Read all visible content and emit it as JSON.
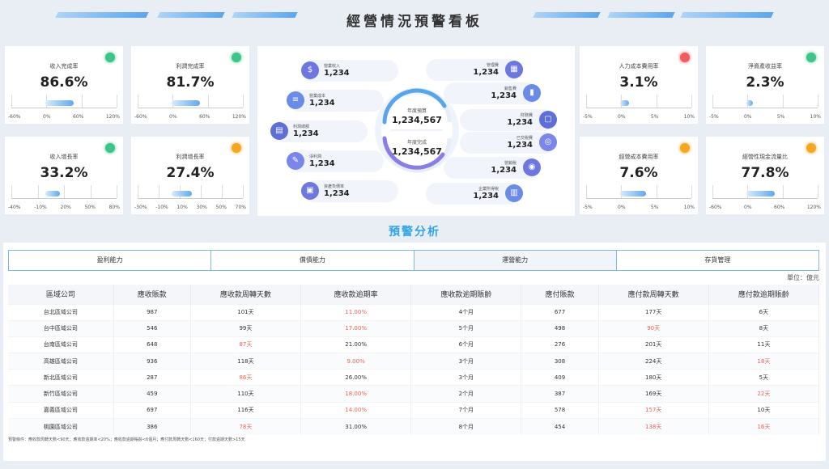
{
  "header": {
    "title": "經營情況預警看板"
  },
  "kpis": [
    {
      "label": "收入完成率",
      "value": "86.6%",
      "status": "green",
      "ticks": [
        "-60%",
        "0%",
        "60%",
        "120%"
      ],
      "fill": 0.5
    },
    {
      "label": "利潤完成率",
      "value": "81.7%",
      "status": "green",
      "ticks": [
        "-60%",
        "0%",
        "60%",
        "120%"
      ],
      "fill": 0.5
    },
    {
      "label": "收入增長率",
      "value": "33.2%",
      "status": "green",
      "ticks": [
        "-40%",
        "-10%",
        "20%",
        "50%",
        "80%"
      ],
      "fill": 0.25
    },
    {
      "label": "利潤增長率",
      "value": "27.4%",
      "status": "orange",
      "ticks": [
        "-30%",
        "-10%",
        "10%",
        "30%",
        "50%",
        "70%"
      ],
      "fill": 0.35
    },
    {
      "label": "人力成本費用率",
      "value": "3.1%",
      "status": "red",
      "ticks": [
        "-5%",
        "0%",
        "5%",
        "10%"
      ],
      "fill": 0.15
    },
    {
      "label": "淨資產收益率",
      "value": "2.3%",
      "status": "green",
      "ticks": [
        "-5%",
        "0%",
        "5%",
        "10%"
      ],
      "fill": 0.12
    },
    {
      "label": "經營成本費用率",
      "value": "7.6%",
      "status": "orange",
      "ticks": [
        "-5%",
        "0%",
        "5%",
        "10%"
      ],
      "fill": 0.45
    },
    {
      "label": "經營性現金流量比",
      "value": "77.8%",
      "status": "orange",
      "ticks": [
        "-60%",
        "0%",
        "60%",
        "120%"
      ],
      "fill": 0.5
    }
  ],
  "center": {
    "left": [
      {
        "label": "營業收入",
        "value": "1,234",
        "icon": "money-bag-icon",
        "glyph": "$"
      },
      {
        "label": "營業成本",
        "value": "1,234",
        "icon": "ledger-icon",
        "glyph": "≡"
      },
      {
        "label": "利潤總額",
        "value": "1,234",
        "icon": "report-icon",
        "glyph": "▤"
      },
      {
        "label": "淨利潤",
        "value": "1,234",
        "icon": "profit-icon",
        "glyph": "✎"
      },
      {
        "label": "資產負債率",
        "value": "1,234",
        "icon": "ratio-icon",
        "glyph": "▣"
      }
    ],
    "right": [
      {
        "label": "管理費",
        "value": "1,234",
        "icon": "calculator-icon",
        "glyph": "▦"
      },
      {
        "label": "銷售費",
        "value": "1,234",
        "icon": "bar-chart-icon",
        "glyph": "▮"
      },
      {
        "label": "財務費",
        "value": "1,234",
        "icon": "document-icon",
        "glyph": "▢"
      },
      {
        "label": "已交稅費",
        "value": "1,234",
        "icon": "tax-icon",
        "glyph": "◎"
      },
      {
        "label": "營銷稅",
        "value": "1,234",
        "icon": "coins-icon",
        "glyph": "◉"
      },
      {
        "label": "企業所得稅",
        "value": "1,234",
        "icon": "chart-icon",
        "glyph": "▥"
      }
    ],
    "budget_label": "年度預算",
    "budget_value": "1,234,567",
    "done_label": "年度完成",
    "done_value": "1,234,567"
  },
  "analysis": {
    "title": "預警分析",
    "tabs": [
      "盈利能力",
      "償債能力",
      "運營能力",
      "存貨管理"
    ],
    "active_tab": 2,
    "unit": "單位：億元",
    "columns": [
      "區域公司",
      "應收賬款",
      "應收款周轉天數",
      "應收款逾期率",
      "應收款逾期賬齡",
      "應付賬款",
      "應付款周轉天數",
      "應付款逾期賬齡"
    ],
    "rows": [
      [
        "台北區域公司",
        "987",
        "101天",
        "11.00%",
        "4个月",
        "677",
        "177天",
        "6天"
      ],
      [
        "台中區域公司",
        "546",
        "99天",
        "17.00%",
        "5个月",
        "498",
        "90天",
        "8天"
      ],
      [
        "台南區域公司",
        "648",
        "87天",
        "21.00%",
        "6个月",
        "276",
        "201天",
        "11天"
      ],
      [
        "高雄區域公司",
        "936",
        "118天",
        "9.00%",
        "3个月",
        "308",
        "224天",
        "18天"
      ],
      [
        "新北區域公司",
        "287",
        "86天",
        "26.00%",
        "3个月",
        "409",
        "180天",
        "5天"
      ],
      [
        "新竹區域公司",
        "459",
        "110天",
        "18.00%",
        "2个月",
        "387",
        "169天",
        "22天"
      ],
      [
        "嘉義區域公司",
        "697",
        "116天",
        "14.00%",
        "7个月",
        "578",
        "157天",
        "10天"
      ],
      [
        "桃園區域公司",
        "386",
        "78天",
        "31.00%",
        "8个月",
        "454",
        "138天",
        "16天"
      ]
    ],
    "warn": [
      [
        0,
        3
      ],
      [
        1,
        3
      ],
      [
        1,
        6
      ],
      [
        2,
        2
      ],
      [
        3,
        3
      ],
      [
        3,
        7
      ],
      [
        4,
        2
      ],
      [
        5,
        3
      ],
      [
        5,
        7
      ],
      [
        6,
        3
      ],
      [
        6,
        6
      ],
      [
        7,
        2
      ],
      [
        7,
        6
      ],
      [
        7,
        7
      ]
    ],
    "note": "預警條件：應收款周轉天數<90天；應收款逾期率<20%；應收款逾期賬齡<6個月；應付款周轉天數<160天；付款逾期天數>15天"
  }
}
